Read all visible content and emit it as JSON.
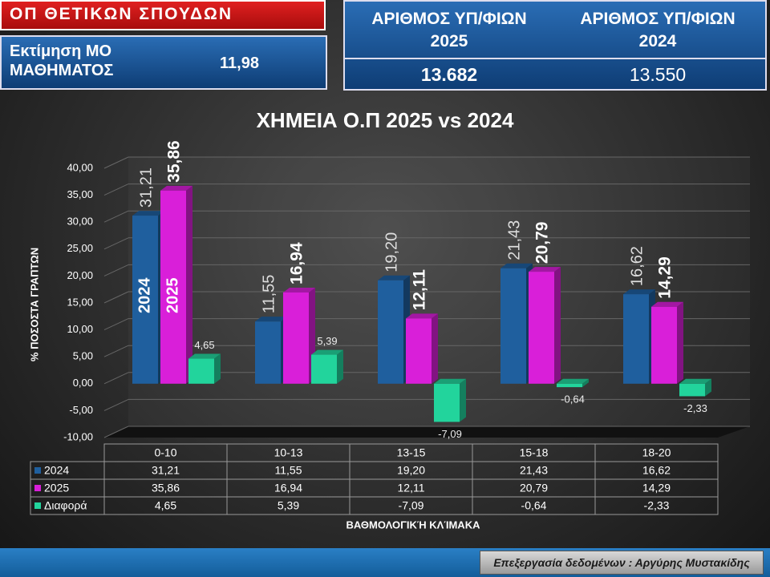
{
  "panels": {
    "subject": "ΟΠ ΘΕΤΙΚΩΝ ΣΠΟΥΔΩΝ",
    "mean_label": "Εκτίμηση ΜΟ ΜΑΘΗΜΑΤΟΣ",
    "mean_value": "11,98",
    "count_headers": [
      "ΑΡΙΘΜΟΣ ΥΠ/ΦΙΩΝ 2025",
      "ΑΡΙΘΜΟΣ ΥΠ/ΦΙΩΝ 2024"
    ],
    "counts": [
      "13.682",
      "13.550"
    ]
  },
  "footer": "Επεξεργασία δεδομένων : Αργύρης Μυστακίδης",
  "chart_data": {
    "type": "bar",
    "title": "ΧΗΜΕΙΑ Ο.Π 2025 vs 2024",
    "y_label": "% ΠΟΣΟΣΤΑ ΓΡΑΠΤΩΝ",
    "x_label": "ΒΑΘΜΟΛΟΓΙΚΉ ΚΛΊΜΑΚΑ",
    "categories": [
      "0-10",
      "10-13",
      "13-15",
      "15-18",
      "18-20"
    ],
    "series": [
      {
        "name": "2024",
        "color": "#1f5f9e",
        "values": [
          31.21,
          11.55,
          19.2,
          21.43,
          16.62
        ],
        "value_labels": [
          "31,21",
          "11,55",
          "19,20",
          "21,43",
          "16,62"
        ]
      },
      {
        "name": "2025",
        "color": "#d91fd9",
        "values": [
          35.86,
          16.94,
          12.11,
          20.79,
          14.29
        ],
        "value_labels": [
          "35,86",
          "16,94",
          "12,11",
          "20,79",
          "14,29"
        ]
      },
      {
        "name": "Διαφορά",
        "color": "#22d49c",
        "values": [
          4.65,
          5.39,
          -7.09,
          -0.64,
          -2.33
        ],
        "value_labels": [
          "4,65",
          "5,39",
          "-7,09",
          "-0,64",
          "-2,33"
        ]
      }
    ],
    "ylim": [
      -10,
      40
    ],
    "yticks": [
      {
        "value": -10,
        "label": "-10,00"
      },
      {
        "value": -5,
        "label": "-5,00"
      },
      {
        "value": 0,
        "label": "0,00"
      },
      {
        "value": 5,
        "label": "5,00"
      },
      {
        "value": 10,
        "label": "10,00"
      },
      {
        "value": 15,
        "label": "15,00"
      },
      {
        "value": 20,
        "label": "20,00"
      },
      {
        "value": 25,
        "label": "25,00"
      },
      {
        "value": 30,
        "label": "30,00"
      },
      {
        "value": 35,
        "label": "35,00"
      },
      {
        "value": 40,
        "label": "40,00"
      }
    ],
    "grid": true
  }
}
